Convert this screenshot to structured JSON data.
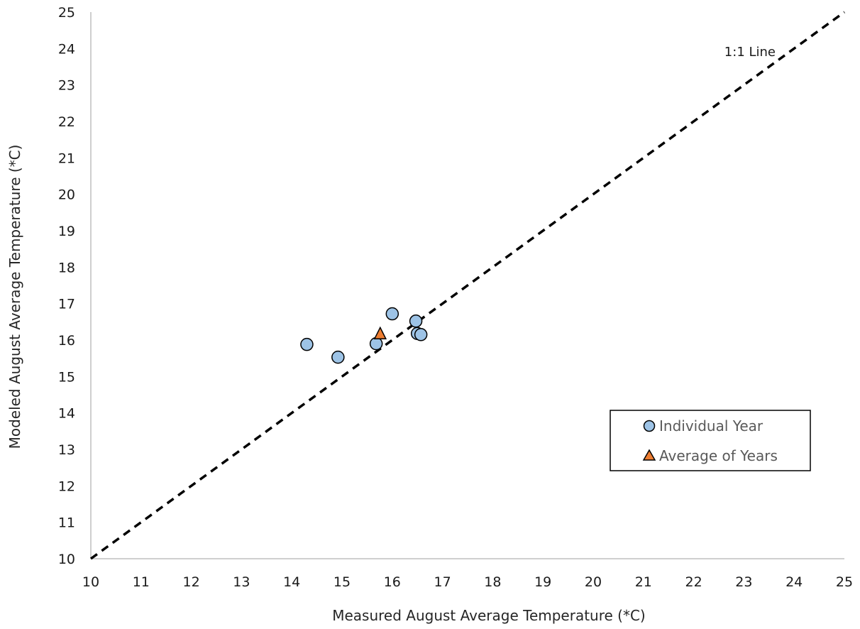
{
  "chart_data": {
    "type": "scatter",
    "title": "",
    "xlabel": "Measured August Average Temperature (*C)",
    "ylabel": "Modeled August Average Temperature (*C)",
    "xlim": [
      10,
      25
    ],
    "ylim": [
      10,
      25
    ],
    "xticks": [
      "10",
      "11",
      "12",
      "13",
      "14",
      "15",
      "16",
      "17",
      "18",
      "19",
      "20",
      "21",
      "22",
      "23",
      "24",
      "25"
    ],
    "yticks": [
      "10",
      "11",
      "12",
      "13",
      "14",
      "15",
      "16",
      "17",
      "18",
      "19",
      "20",
      "21",
      "22",
      "23",
      "24",
      "25"
    ],
    "grid": false,
    "legend_position": "lower-right",
    "series": [
      {
        "name": "Individual Year",
        "marker": "circle",
        "color": "#9dc3e6",
        "points": [
          {
            "x": 14.3,
            "y": 15.88
          },
          {
            "x": 14.92,
            "y": 15.53
          },
          {
            "x": 15.68,
            "y": 15.9
          },
          {
            "x": 16.0,
            "y": 16.72
          },
          {
            "x": 16.47,
            "y": 16.52
          },
          {
            "x": 16.5,
            "y": 16.18
          },
          {
            "x": 16.57,
            "y": 16.15
          }
        ]
      },
      {
        "name": "Average of Years",
        "marker": "triangle",
        "color": "#ed7d31",
        "points": [
          {
            "x": 15.76,
            "y": 16.17
          }
        ]
      }
    ],
    "reference_line": {
      "label": "1:1 Line",
      "from": [
        10,
        10
      ],
      "to": [
        25,
        25
      ],
      "style": "dashed",
      "color": "#000000"
    }
  }
}
